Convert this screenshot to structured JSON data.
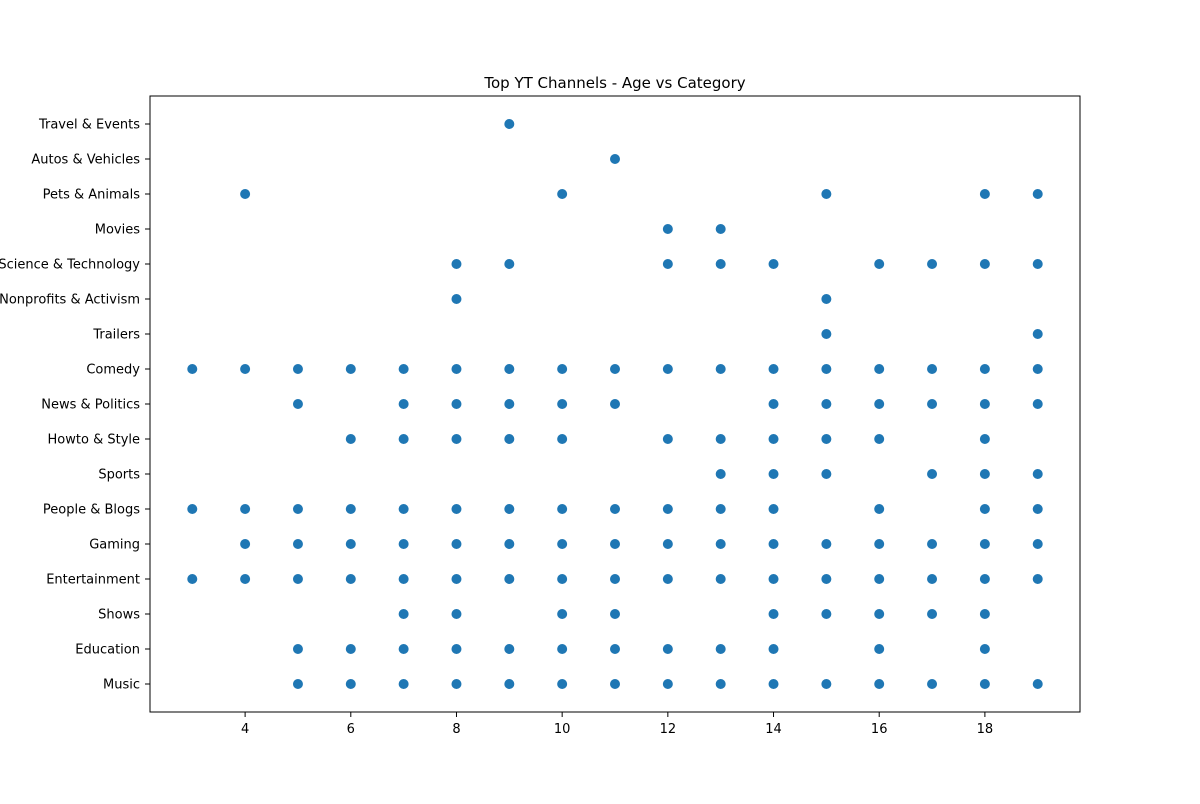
{
  "chart_data": {
    "type": "scatter",
    "title": "Top YT Channels - Age vs Category",
    "xlabel": "",
    "ylabel": "",
    "xlim": [
      2.2,
      19.8
    ],
    "x_ticks": [
      4,
      6,
      8,
      10,
      12,
      14,
      16,
      18
    ],
    "x_tick_labels": [
      "4",
      "6",
      "8",
      "10",
      "12",
      "14",
      "16",
      "18"
    ],
    "y_categories": [
      "Music",
      "Education",
      "Shows",
      "Entertainment",
      "Gaming",
      "People & Blogs",
      "Sports",
      "Howto & Style",
      "News & Politics",
      "Comedy",
      "Trailers",
      "Nonprofits & Activism",
      "Science & Technology",
      "Movies",
      "Pets & Animals",
      "Autos & Vehicles",
      "Travel & Events"
    ],
    "grid": false,
    "marker_color": "#1f77b4",
    "points": [
      {
        "category": "Travel & Events",
        "x": [
          9
        ]
      },
      {
        "category": "Autos & Vehicles",
        "x": [
          11
        ]
      },
      {
        "category": "Pets & Animals",
        "x": [
          4,
          10,
          15,
          18,
          19
        ]
      },
      {
        "category": "Movies",
        "x": [
          12,
          13
        ]
      },
      {
        "category": "Science & Technology",
        "x": [
          8,
          9,
          12,
          13,
          14,
          16,
          17,
          18,
          19
        ]
      },
      {
        "category": "Nonprofits & Activism",
        "x": [
          8,
          15
        ]
      },
      {
        "category": "Trailers",
        "x": [
          15,
          19
        ]
      },
      {
        "category": "Comedy",
        "x": [
          3,
          4,
          5,
          6,
          7,
          8,
          9,
          10,
          11,
          12,
          13,
          14,
          15,
          16,
          17,
          18,
          19
        ]
      },
      {
        "category": "News & Politics",
        "x": [
          5,
          7,
          8,
          9,
          10,
          11,
          14,
          15,
          16,
          17,
          18,
          19
        ]
      },
      {
        "category": "Howto & Style",
        "x": [
          6,
          7,
          8,
          9,
          10,
          12,
          13,
          14,
          15,
          16,
          18
        ]
      },
      {
        "category": "Sports",
        "x": [
          13,
          14,
          15,
          17,
          18,
          19
        ]
      },
      {
        "category": "People & Blogs",
        "x": [
          3,
          4,
          5,
          6,
          7,
          8,
          9,
          10,
          11,
          12,
          13,
          14,
          16,
          18,
          19
        ]
      },
      {
        "category": "Gaming",
        "x": [
          4,
          5,
          6,
          7,
          8,
          9,
          10,
          11,
          12,
          13,
          14,
          15,
          16,
          17,
          18,
          19
        ]
      },
      {
        "category": "Entertainment",
        "x": [
          3,
          4,
          5,
          6,
          7,
          8,
          9,
          10,
          11,
          12,
          13,
          14,
          15,
          16,
          17,
          18,
          19
        ]
      },
      {
        "category": "Shows",
        "x": [
          7,
          8,
          10,
          11,
          14,
          15,
          16,
          17,
          18
        ]
      },
      {
        "category": "Education",
        "x": [
          5,
          6,
          7,
          8,
          9,
          10,
          11,
          12,
          13,
          14,
          16,
          18
        ]
      },
      {
        "category": "Music",
        "x": [
          5,
          6,
          7,
          8,
          9,
          10,
          11,
          12,
          13,
          14,
          15,
          16,
          17,
          18,
          19
        ]
      }
    ]
  }
}
